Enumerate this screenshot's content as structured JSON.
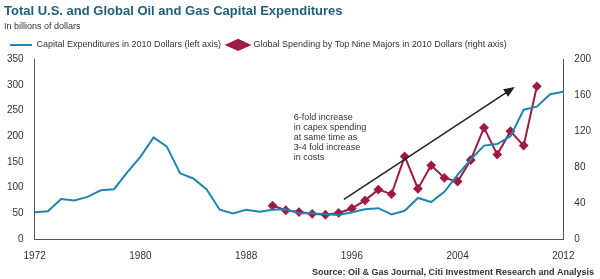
{
  "chart_data": {
    "type": "line",
    "title": "Total U.S. and Global Oil and Gas Capital Expenditures",
    "subtitle": "In billions of dollars",
    "source": "Source: Oil & Gas Journal, Citi Investment Research and Analysis",
    "annotation": [
      "6-fold increase",
      "in capex spending",
      "at same time as",
      "3-4 fold increase",
      "in costs"
    ],
    "x": [
      1972,
      1973,
      1974,
      1975,
      1976,
      1977,
      1978,
      1979,
      1980,
      1981,
      1982,
      1983,
      1984,
      1985,
      1986,
      1987,
      1988,
      1989,
      1990,
      1991,
      1992,
      1993,
      1994,
      1995,
      1996,
      1997,
      1998,
      1999,
      2000,
      2001,
      2002,
      2003,
      2004,
      2005,
      2006,
      2007,
      2008,
      2009,
      2010,
      2011,
      2012
    ],
    "xlim": [
      1972,
      2012
    ],
    "xticks": [
      1972,
      1980,
      1988,
      1996,
      2004,
      2012
    ],
    "ylim": [
      0,
      350
    ],
    "yticks": [
      0,
      50,
      100,
      150,
      200,
      250,
      300,
      350
    ],
    "y2lim": [
      0,
      200
    ],
    "y2ticks": [
      0,
      40,
      80,
      120,
      160,
      200
    ],
    "grid": false,
    "legend": "top-left",
    "series": [
      {
        "name": "Capital Expenditures in 2010 Dollars (left axis)",
        "color": "#1f86ad",
        "marker": "none",
        "line_style": "solid",
        "values": [
          52,
          54,
          78,
          75,
          82,
          95,
          97,
          130,
          160,
          198,
          180,
          128,
          118,
          97,
          57,
          50,
          57,
          53,
          57,
          58,
          50,
          50,
          48,
          47,
          52,
          58,
          60,
          48,
          55,
          80,
          72,
          92,
          125,
          155,
          182,
          185,
          200,
          252,
          258,
          282,
          287
        ]
      },
      {
        "name": "Global Spending by Top Nine Majors in 2010 Dollars (right axis)",
        "color": "#9e1b45",
        "marker": "diamond",
        "line_style": "solid",
        "axis": "y2",
        "values": [
          null,
          null,
          null,
          null,
          null,
          null,
          null,
          null,
          null,
          null,
          null,
          null,
          null,
          null,
          null,
          null,
          null,
          null,
          37,
          32,
          30,
          28,
          27,
          29,
          34,
          43,
          55,
          50,
          92,
          56,
          82,
          68,
          64,
          88,
          124,
          94,
          120,
          104,
          170,
          null,
          null
        ]
      }
    ]
  }
}
